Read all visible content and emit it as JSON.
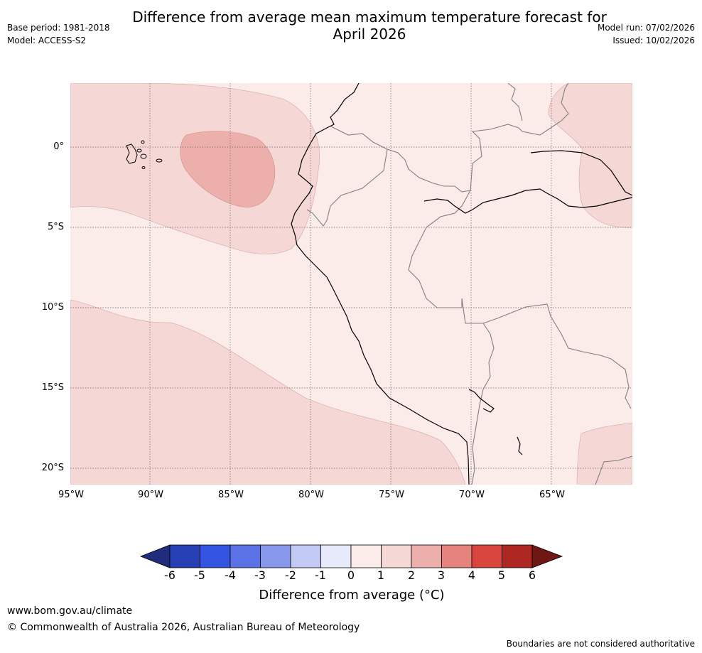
{
  "title": {
    "line1": "Difference from average mean maximum temperature forecast for",
    "line2": "April 2026"
  },
  "meta_left": {
    "base_period": "Base period: 1981-2018",
    "model": "Model: ACCESS-S2"
  },
  "meta_right": {
    "model_run": "Model run: 07/02/2026",
    "issued": "Issued: 10/02/2026"
  },
  "map": {
    "latitude_labels": [
      "0°",
      "5°S",
      "10°S",
      "15°S",
      "20°S"
    ],
    "longitude_labels": [
      "95°W",
      "90°W",
      "85°W",
      "80°W",
      "75°W",
      "70°W",
      "65°W"
    ],
    "fill_colors": {
      "zero_to_one": "#fbebe9",
      "one_to_two": "#f5d7d5",
      "two_to_three": "#edafab"
    },
    "coast_color": "#000000",
    "border_color": "#808080",
    "grid_color": "#666666"
  },
  "colorbar": {
    "ticks": [
      "-6",
      "-5",
      "-4",
      "-3",
      "-2",
      "-1",
      "0",
      "1",
      "2",
      "3",
      "4",
      "5",
      "6"
    ],
    "colors": [
      "#1f2d7a",
      "#263fb4",
      "#3454e2",
      "#5b72e6",
      "#8697ec",
      "#c2c9f5",
      "#e7eafb",
      "#fbebe9",
      "#f5d7d5",
      "#edafab",
      "#e6837c",
      "#d9463e",
      "#ad2822",
      "#6e1713"
    ],
    "label": "Difference from average (°C)"
  },
  "footer": {
    "url": "www.bom.gov.au/climate",
    "copyright": "© Commonwealth of Australia 2026, Australian Bureau of Meteorology",
    "note": "Boundaries are not considered authoritative"
  }
}
